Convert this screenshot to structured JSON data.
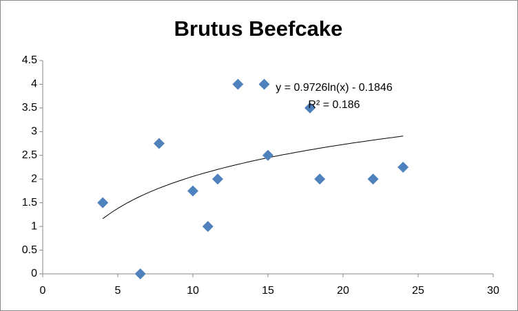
{
  "chart_data": {
    "type": "scatter",
    "title": "Brutus Beefcake",
    "x": [
      4,
      6.5,
      7.75,
      10,
      11,
      11.65,
      13,
      14.75,
      15,
      17.8,
      18.45,
      22,
      24
    ],
    "values": [
      1.5,
      0,
      2.75,
      1.75,
      1,
      2,
      4,
      4,
      2.5,
      3.5,
      2,
      2,
      2.25
    ],
    "color": "#4f81bd",
    "xlim": [
      0,
      30
    ],
    "xticks": [
      0,
      5,
      10,
      15,
      20,
      25,
      30
    ],
    "ylim": [
      0,
      4.5
    ],
    "yticks": [
      0,
      0.5,
      1,
      1.5,
      2,
      2.5,
      3,
      3.5,
      4,
      4.5
    ],
    "grid": false,
    "trendline": {
      "type": "log",
      "equation": "y = 0.9726ln(x) - 0.1846",
      "r_squared": "R² = 0.186"
    }
  }
}
